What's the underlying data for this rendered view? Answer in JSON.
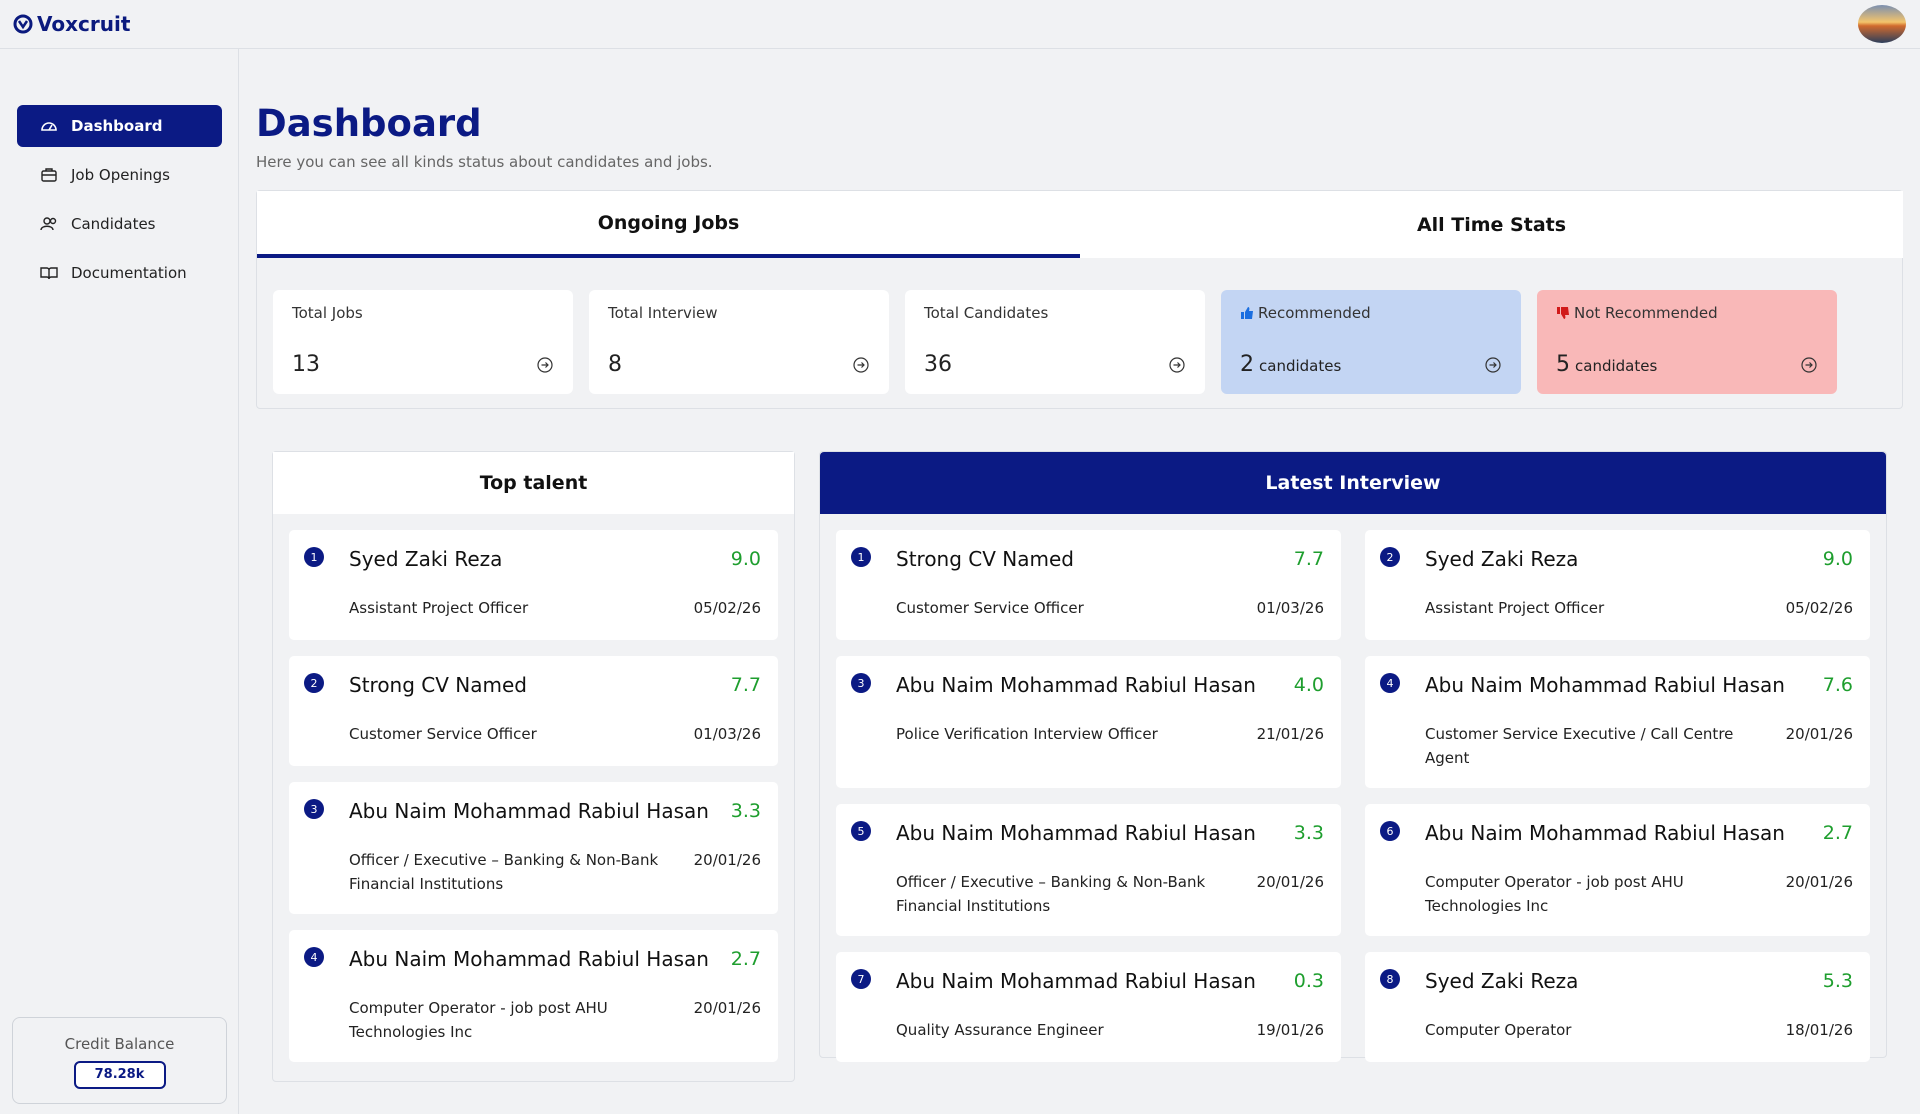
{
  "header": {
    "brand": "Voxcruit"
  },
  "sidebar": {
    "nav": [
      "Dashboard",
      "Job Openings",
      "Candidates",
      "Documentation"
    ],
    "credit": {
      "label": "Credit Balance",
      "value": "78.28k"
    }
  },
  "page": {
    "title": "Dashboard",
    "subtitle": "Here you can see all kinds status about candidates and jobs."
  },
  "tabs": [
    "Ongoing Jobs",
    "All Time Stats"
  ],
  "stats": [
    {
      "label": "Total Jobs",
      "value": 13
    },
    {
      "label": "Total Interview",
      "value": 8
    },
    {
      "label": "Total Candidates",
      "value": 36
    },
    {
      "label": "Recommended",
      "value": 2,
      "unit": "candidates"
    },
    {
      "label": "Not Recommended",
      "value": 5,
      "unit": "candidates"
    }
  ],
  "top_talent": {
    "title": "Top talent",
    "items": [
      {
        "rank": 1,
        "name": "Syed Zaki Reza",
        "score": "9.0",
        "role": "Assistant Project Officer",
        "date": "05/02/26"
      },
      {
        "rank": 2,
        "name": "Strong CV Named",
        "score": "7.7",
        "role": "Customer Service Officer",
        "date": "01/03/26"
      },
      {
        "rank": 3,
        "name": "Abu Naim Mohammad Rabiul Hasan",
        "score": "3.3",
        "role": "Officer / Executive – Banking & Non-Bank Financial Institutions",
        "date": "20/01/26"
      },
      {
        "rank": 4,
        "name": "Abu Naim Mohammad Rabiul Hasan",
        "score": "2.7",
        "role": "Computer Operator - job post AHU Technologies Inc",
        "date": "20/01/26"
      }
    ]
  },
  "latest_interview": {
    "title": "Latest Interview",
    "items": [
      {
        "rank": 1,
        "name": "Strong CV Named",
        "score": "7.7",
        "role": "Customer Service Officer",
        "date": "01/03/26"
      },
      {
        "rank": 2,
        "name": "Syed Zaki Reza",
        "score": "9.0",
        "role": "Assistant Project Officer",
        "date": "05/02/26"
      },
      {
        "rank": 3,
        "name": "Abu Naim Mohammad Rabiul Hasan",
        "score": "4.0",
        "role": "Police Verification Interview Officer",
        "date": "21/01/26"
      },
      {
        "rank": 4,
        "name": "Abu Naim Mohammad Rabiul Hasan",
        "score": "7.6",
        "role": "Customer Service Executive / Call Centre Agent",
        "date": "20/01/26"
      },
      {
        "rank": 5,
        "name": "Abu Naim Mohammad Rabiul Hasan",
        "score": "3.3",
        "role": "Officer / Executive – Banking & Non-Bank Financial Institutions",
        "date": "20/01/26"
      },
      {
        "rank": 6,
        "name": "Abu Naim Mohammad Rabiul Hasan",
        "score": "2.7",
        "role": "Computer Operator - job post AHU Technologies Inc",
        "date": "20/01/26"
      },
      {
        "rank": 7,
        "name": "Abu Naim Mohammad Rabiul Hasan",
        "score": "0.3",
        "role": "Quality Assurance Engineer",
        "date": "19/01/26"
      },
      {
        "rank": 8,
        "name": "Syed Zaki Reza",
        "score": "5.3",
        "role": "Computer Operator",
        "date": "18/01/26"
      }
    ]
  }
}
